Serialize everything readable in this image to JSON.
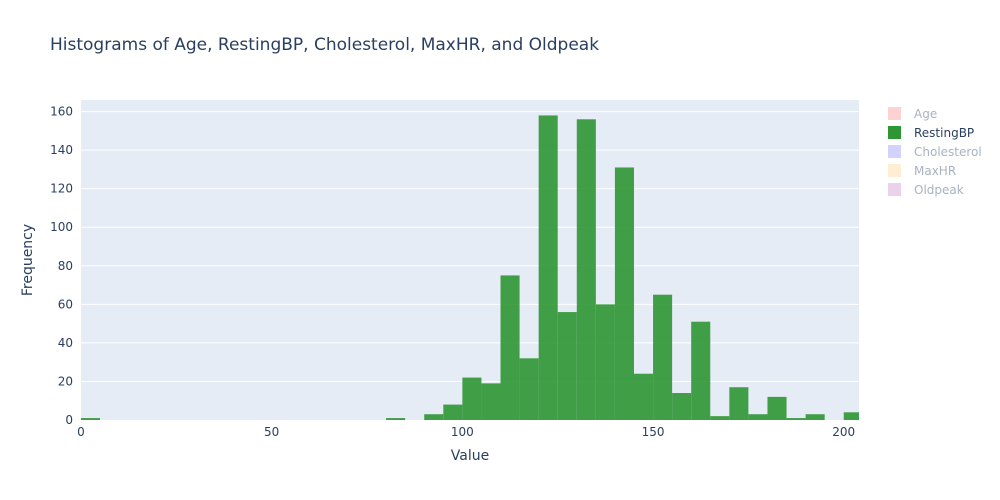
{
  "chart_data": {
    "type": "bar",
    "title": "Histograms of Age, RestingBP, Cholesterol, MaxHR, and Oldpeak",
    "xlabel": "Value",
    "ylabel": "Frequency",
    "xlim": [
      0,
      204
    ],
    "ylim": [
      0,
      166
    ],
    "x_ticks": [
      0,
      50,
      100,
      150,
      200
    ],
    "y_ticks": [
      0,
      20,
      40,
      60,
      80,
      100,
      120,
      140,
      160
    ],
    "grid": true,
    "legend_position": "right",
    "bin_width": 5,
    "series": [
      {
        "name": "Age",
        "color": "#ff9c9c",
        "visible": false
      },
      {
        "name": "RestingBP",
        "color": "#2e9633",
        "visible": true,
        "bins": [
          {
            "x0": 0,
            "x1": 5,
            "y": 1
          },
          {
            "x0": 80,
            "x1": 85,
            "y": 1
          },
          {
            "x0": 90,
            "x1": 95,
            "y": 3
          },
          {
            "x0": 95,
            "x1": 100,
            "y": 8
          },
          {
            "x0": 100,
            "x1": 105,
            "y": 22
          },
          {
            "x0": 105,
            "x1": 110,
            "y": 19
          },
          {
            "x0": 110,
            "x1": 115,
            "y": 75
          },
          {
            "x0": 115,
            "x1": 120,
            "y": 32
          },
          {
            "x0": 120,
            "x1": 125,
            "y": 158
          },
          {
            "x0": 125,
            "x1": 130,
            "y": 56
          },
          {
            "x0": 130,
            "x1": 135,
            "y": 156
          },
          {
            "x0": 135,
            "x1": 140,
            "y": 60
          },
          {
            "x0": 140,
            "x1": 145,
            "y": 131
          },
          {
            "x0": 145,
            "x1": 150,
            "y": 24
          },
          {
            "x0": 150,
            "x1": 155,
            "y": 65
          },
          {
            "x0": 155,
            "x1": 160,
            "y": 14
          },
          {
            "x0": 160,
            "x1": 165,
            "y": 51
          },
          {
            "x0": 165,
            "x1": 170,
            "y": 2
          },
          {
            "x0": 170,
            "x1": 175,
            "y": 17
          },
          {
            "x0": 175,
            "x1": 180,
            "y": 3
          },
          {
            "x0": 180,
            "x1": 185,
            "y": 12
          },
          {
            "x0": 185,
            "x1": 190,
            "y": 1
          },
          {
            "x0": 190,
            "x1": 195,
            "y": 3
          },
          {
            "x0": 200,
            "x1": 205,
            "y": 4
          }
        ]
      },
      {
        "name": "Cholesterol",
        "color": "#9e9cff",
        "visible": false
      },
      {
        "name": "MaxHR",
        "color": "#ffd9a0",
        "visible": false
      },
      {
        "name": "Oldpeak",
        "color": "#d29bd2",
        "visible": false
      }
    ],
    "colors": {
      "plot_bg": "#e5ecf6",
      "grid": "#ffffff",
      "text": "#2a3f5f"
    }
  }
}
